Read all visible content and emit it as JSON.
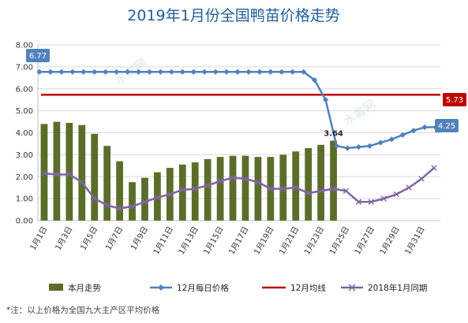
{
  "title": "2019年1月份全国鸭苗价格走势",
  "footnote": "*注：以上价格为全国九大主产区平均价格",
  "watermark": "水禽网",
  "colors": {
    "bars": "#5a6e2a",
    "daily_dec": "#4f81bd",
    "avg_dec": "#c00000",
    "last_year": "#8064a2"
  },
  "chart_data": {
    "type": "bar+line",
    "ylim": [
      0,
      8
    ],
    "y_ticks": [
      "0.00",
      "1.00",
      "2.00",
      "3.00",
      "4.00",
      "5.00",
      "6.00",
      "7.00",
      "8.00"
    ],
    "x_labels": [
      "1月1日",
      "1月3日",
      "1月5日",
      "1月7日",
      "1月9日",
      "1月11日",
      "1月13日",
      "1月15日",
      "1月17日",
      "1月19日",
      "1月21日",
      "1月23日",
      "1月25日",
      "1月27日",
      "1月29日",
      "1月31日"
    ],
    "grid": true,
    "legend_position": "bottom",
    "series": [
      {
        "name": "本月走势",
        "type": "bar",
        "values": [
          4.4,
          4.5,
          4.45,
          4.35,
          3.95,
          3.4,
          2.7,
          1.75,
          1.95,
          2.2,
          2.4,
          2.55,
          2.65,
          2.8,
          2.9,
          2.95,
          2.95,
          2.9,
          2.9,
          3.0,
          3.15,
          3.3,
          3.45,
          3.64
        ]
      },
      {
        "name": "12月每日价格",
        "type": "line",
        "values": [
          6.77,
          6.77,
          6.77,
          6.77,
          6.77,
          6.77,
          6.77,
          6.77,
          6.77,
          6.77,
          6.77,
          6.77,
          6.77,
          6.77,
          6.77,
          6.77,
          6.77,
          6.77,
          6.77,
          6.77,
          6.77,
          6.77,
          6.77,
          6.77,
          6.77,
          6.4,
          5.5,
          3.4,
          3.3,
          3.35,
          3.4,
          3.55,
          3.7,
          3.9,
          4.1,
          4.25,
          4.25
        ]
      },
      {
        "name": "12月均线",
        "type": "line",
        "values": [
          5.73
        ]
      },
      {
        "name": "2018年1月同期",
        "type": "line",
        "values": [
          2.15,
          2.1,
          2.1,
          1.75,
          1.0,
          0.7,
          0.55,
          0.65,
          0.85,
          1.05,
          1.2,
          1.4,
          1.45,
          1.6,
          1.8,
          1.95,
          1.9,
          1.75,
          1.45,
          1.45,
          1.5,
          1.25,
          1.35,
          1.45,
          1.35,
          0.85,
          0.85,
          1.0,
          1.2,
          1.5,
          1.9,
          2.4
        ]
      }
    ],
    "annotations": {
      "first_value": "6.77",
      "avg_value": "5.73",
      "last_bar": "3.64",
      "last_value": "4.25"
    }
  }
}
